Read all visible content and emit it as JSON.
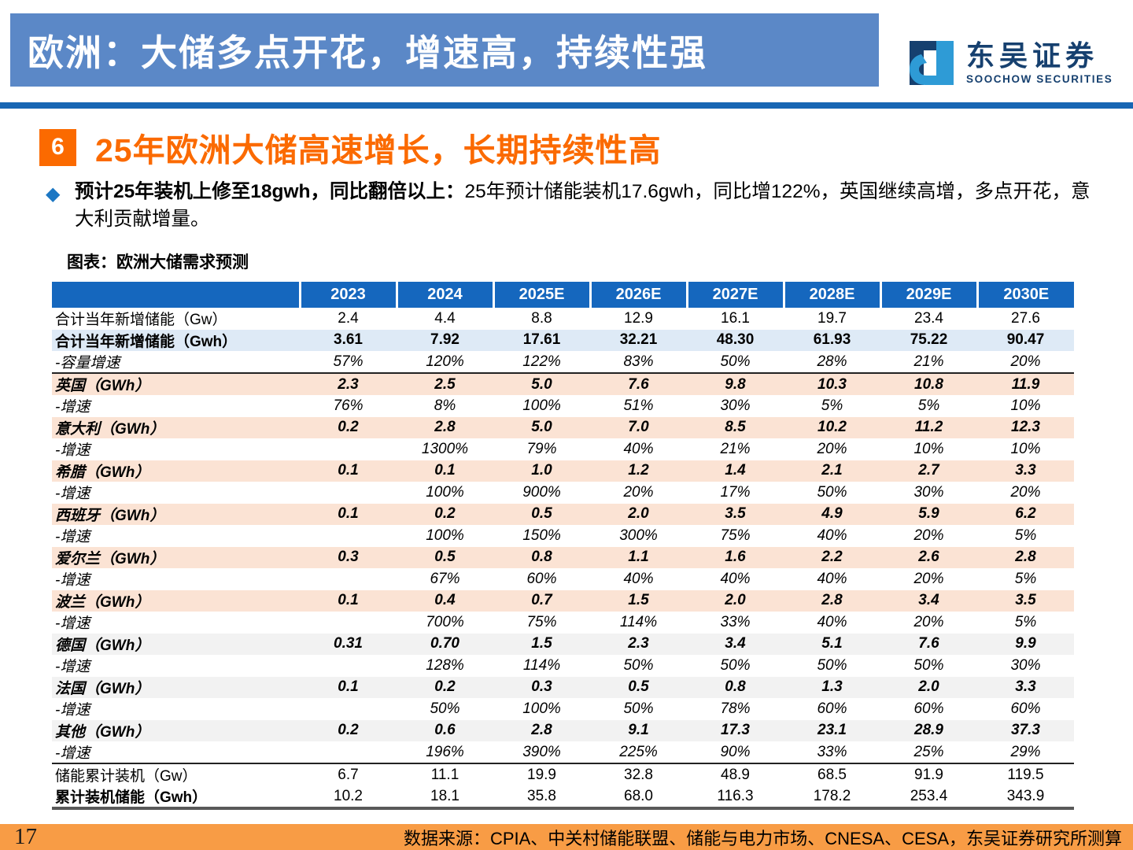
{
  "banner": {
    "title": "欧洲：大储多点开花，增速高，持续性强"
  },
  "logo": {
    "cn": "东吴证券",
    "en": "SOOCHOW SECURITIES"
  },
  "section": {
    "number": "6",
    "title": "25年欧洲大储高速增长，长期持续性高"
  },
  "bullet": {
    "bold": "预计25年装机上修至18gwh，同比翻倍以上：",
    "rest": "25年预计储能装机17.6gwh，同比增122%，英国继续高增，多点开花，意大利贡献增量。"
  },
  "chart_label": "图表：欧洲大储需求预测",
  "chart_data": {
    "type": "table",
    "title": "欧洲大储需求预测",
    "columns": [
      "2023",
      "2024",
      "2025E",
      "2026E",
      "2027E",
      "2028E",
      "2029E",
      "2030E"
    ],
    "rows": [
      {
        "label": "合计当年新增储能（Gw）",
        "style": "plain",
        "values": [
          "2.4",
          "4.4",
          "8.8",
          "12.9",
          "16.1",
          "19.7",
          "23.4",
          "27.6"
        ]
      },
      {
        "label": "合计当年新增储能（Gwh）",
        "style": "total",
        "values": [
          "3.61",
          "7.92",
          "17.61",
          "32.21",
          "48.30",
          "61.93",
          "75.22",
          "90.47"
        ]
      },
      {
        "label": "-容量增速",
        "style": "growth",
        "border": "bottom",
        "values": [
          "57%",
          "120%",
          "122%",
          "83%",
          "50%",
          "28%",
          "21%",
          "20%"
        ]
      },
      {
        "label": "英国（GWh）",
        "style": "peach",
        "values": [
          "2.3",
          "2.5",
          "5.0",
          "7.6",
          "9.8",
          "10.3",
          "10.8",
          "11.9"
        ]
      },
      {
        "label": "-增速",
        "style": "growth",
        "values": [
          "76%",
          "8%",
          "100%",
          "51%",
          "30%",
          "5%",
          "5%",
          "10%"
        ]
      },
      {
        "label": "意大利（GWh）",
        "style": "peach",
        "values": [
          "0.2",
          "2.8",
          "5.0",
          "7.0",
          "8.5",
          "10.2",
          "11.2",
          "12.3"
        ]
      },
      {
        "label": "-增速",
        "style": "growth",
        "values": [
          "",
          "1300%",
          "79%",
          "40%",
          "21%",
          "20%",
          "10%",
          "10%"
        ]
      },
      {
        "label": "希腊（GWh）",
        "style": "peach",
        "values": [
          "0.1",
          "0.1",
          "1.0",
          "1.2",
          "1.4",
          "2.1",
          "2.7",
          "3.3"
        ]
      },
      {
        "label": "-增速",
        "style": "growth",
        "values": [
          "",
          "100%",
          "900%",
          "20%",
          "17%",
          "50%",
          "30%",
          "20%"
        ]
      },
      {
        "label": "西班牙（GWh）",
        "style": "peach",
        "values": [
          "0.1",
          "0.2",
          "0.5",
          "2.0",
          "3.5",
          "4.9",
          "5.9",
          "6.2"
        ]
      },
      {
        "label": "-增速",
        "style": "growth",
        "values": [
          "",
          "100%",
          "150%",
          "300%",
          "75%",
          "40%",
          "20%",
          "5%"
        ]
      },
      {
        "label": "爱尔兰（GWh）",
        "style": "peach",
        "values": [
          "0.3",
          "0.5",
          "0.8",
          "1.1",
          "1.6",
          "2.2",
          "2.6",
          "2.8"
        ]
      },
      {
        "label": "-增速",
        "style": "growth",
        "values": [
          "",
          "67%",
          "60%",
          "40%",
          "40%",
          "40%",
          "20%",
          "5%"
        ]
      },
      {
        "label": "波兰（GWh）",
        "style": "peach",
        "values": [
          "0.1",
          "0.4",
          "0.7",
          "1.5",
          "2.0",
          "2.8",
          "3.4",
          "3.5"
        ]
      },
      {
        "label": "-增速",
        "style": "growth",
        "values": [
          "",
          "700%",
          "75%",
          "114%",
          "33%",
          "40%",
          "20%",
          "5%"
        ]
      },
      {
        "label": "德国（GWh）",
        "style": "gray",
        "values": [
          "0.31",
          "0.70",
          "1.5",
          "2.3",
          "3.4",
          "5.1",
          "7.6",
          "9.9"
        ]
      },
      {
        "label": "-增速",
        "style": "growth",
        "values": [
          "",
          "128%",
          "114%",
          "50%",
          "50%",
          "50%",
          "50%",
          "30%"
        ]
      },
      {
        "label": "法国（GWh）",
        "style": "gray",
        "values": [
          "0.1",
          "0.2",
          "0.3",
          "0.5",
          "0.8",
          "1.3",
          "2.0",
          "3.3"
        ]
      },
      {
        "label": "-增速",
        "style": "growth",
        "values": [
          "",
          "50%",
          "100%",
          "50%",
          "78%",
          "60%",
          "60%",
          "60%"
        ]
      },
      {
        "label": "其他（GWh）",
        "style": "gray",
        "values": [
          "0.2",
          "0.6",
          "2.8",
          "9.1",
          "17.3",
          "23.1",
          "28.9",
          "37.3"
        ]
      },
      {
        "label": "-增速",
        "style": "growth",
        "border": "bottom",
        "values": [
          "",
          "196%",
          "390%",
          "225%",
          "90%",
          "33%",
          "25%",
          "29%"
        ]
      },
      {
        "label": "储能累计装机（Gw）",
        "style": "cum",
        "values": [
          "6.7",
          "11.1",
          "19.9",
          "32.8",
          "48.9",
          "68.5",
          "91.9",
          "119.5"
        ]
      },
      {
        "label": "累计装机储能（Gwh）",
        "style": "cumb",
        "values": [
          "10.2",
          "18.1",
          "35.8",
          "68.0",
          "116.3",
          "178.2",
          "253.4",
          "343.9"
        ]
      }
    ]
  },
  "footer": {
    "page": "17",
    "source": "数据来源：CPIA、中关村储能联盟、储能与电力市场、CNESA、CESA，东吴证券研究所测算"
  },
  "colors": {
    "banner_blue": "#5B88C7",
    "divider_blue": "#1766B4",
    "header_blue": "#1567BE",
    "row_blue": "#DEEAF6",
    "row_peach": "#FBE3D4",
    "row_gray": "#F2F2F2",
    "accent_orange": "#FB6A00",
    "footer_orange": "#F89C45",
    "logo_navy": "#16406F",
    "logo_blue": "#2E9BD6",
    "bullet_blue": "#1C77C3"
  }
}
